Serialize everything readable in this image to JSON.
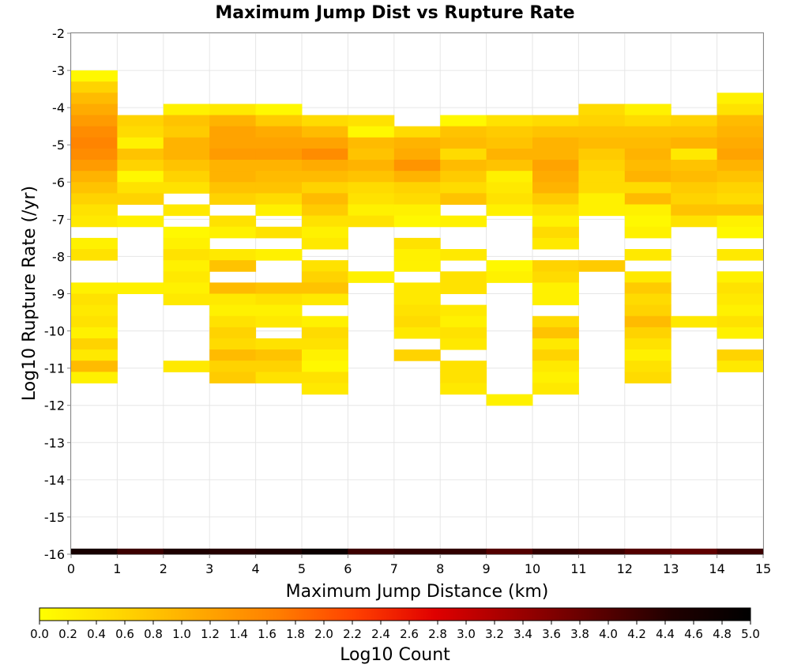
{
  "chart_data": {
    "type": "heatmap",
    "title": "Maximum Jump Dist vs Rupture Rate",
    "xlabel": "Maximum Jump Distance (km)",
    "ylabel": "Log10 Rupture Rate (/yr)",
    "xlim": [
      0,
      15
    ],
    "ylim": [
      -16,
      -2
    ],
    "x_ticks": [
      "0",
      "1",
      "2",
      "3",
      "4",
      "5",
      "6",
      "7",
      "8",
      "9",
      "10",
      "11",
      "12",
      "13",
      "14",
      "15"
    ],
    "y_ticks": [
      "-2",
      "-3",
      "-4",
      "-5",
      "-6",
      "-7",
      "-8",
      "-9",
      "-10",
      "-11",
      "-12",
      "-13",
      "-14",
      "-15",
      "-16"
    ],
    "grid": true,
    "colorscale": {
      "label": "Log10 Count",
      "min": 0.0,
      "max": 5.0,
      "ticks": [
        "0.0",
        "0.2",
        "0.4",
        "0.6",
        "0.8",
        "1.0",
        "1.2",
        "1.4",
        "1.6",
        "1.8",
        "2.0",
        "2.2",
        "2.4",
        "2.6",
        "2.8",
        "3.0",
        "3.2",
        "3.4",
        "3.6",
        "3.8",
        "4.0",
        "4.2",
        "4.4",
        "4.6",
        "4.8",
        "5.0"
      ],
      "colors": [
        "#ffff00",
        "#ffd700",
        "#ffaa00",
        "#ff7f00",
        "#ff4000",
        "#e00000",
        "#a00000",
        "#600000",
        "#200000",
        "#000000"
      ]
    },
    "bin_height": 0.3,
    "columns": [
      {
        "x0": 0,
        "bins": [
          [
            -3.0,
            0.1
          ],
          [
            -3.3,
            0.6
          ],
          [
            -3.6,
            0.9
          ],
          [
            -3.9,
            1.1
          ],
          [
            -4.2,
            1.3
          ],
          [
            -4.5,
            1.5
          ],
          [
            -4.8,
            1.6
          ],
          [
            -5.1,
            1.5
          ],
          [
            -5.4,
            1.3
          ],
          [
            -5.7,
            1.0
          ],
          [
            -6.0,
            0.8
          ],
          [
            -6.3,
            0.6
          ],
          [
            -6.6,
            0.4
          ],
          [
            -6.9,
            0.3
          ],
          [
            -7.5,
            0.2
          ],
          [
            -7.8,
            0.4
          ],
          [
            -8.7,
            0.2
          ],
          [
            -9.0,
            0.4
          ],
          [
            -9.3,
            0.3
          ],
          [
            -9.6,
            0.4
          ],
          [
            -9.9,
            0.2
          ],
          [
            -10.2,
            0.6
          ],
          [
            -10.5,
            0.3
          ],
          [
            -10.8,
            0.9
          ],
          [
            -11.1,
            0.2
          ]
        ]
      },
      {
        "x0": 1,
        "bins": [
          [
            -4.2,
            0.6
          ],
          [
            -4.5,
            0.5
          ],
          [
            -4.8,
            0.2
          ],
          [
            -5.1,
            0.8
          ],
          [
            -5.4,
            0.6
          ],
          [
            -5.7,
            0.1
          ],
          [
            -6.0,
            0.4
          ],
          [
            -6.3,
            0.6
          ],
          [
            -6.9,
            0.2
          ],
          [
            -8.7,
            0.2
          ]
        ]
      },
      {
        "x0": 2,
        "bins": [
          [
            -3.9,
            0.2
          ],
          [
            -4.2,
            0.8
          ],
          [
            -4.5,
            0.7
          ],
          [
            -4.8,
            1.0
          ],
          [
            -5.1,
            1.0
          ],
          [
            -5.4,
            0.8
          ],
          [
            -5.7,
            0.6
          ],
          [
            -6.0,
            0.4
          ],
          [
            -6.6,
            0.3
          ],
          [
            -7.2,
            0.1
          ],
          [
            -7.5,
            0.2
          ],
          [
            -7.8,
            0.4
          ],
          [
            -8.1,
            0.2
          ],
          [
            -8.4,
            0.3
          ],
          [
            -8.7,
            0.2
          ],
          [
            -9.0,
            0.3
          ],
          [
            -10.8,
            0.3
          ]
        ]
      },
      {
        "x0": 3,
        "bins": [
          [
            -3.9,
            0.3
          ],
          [
            -4.2,
            1.0
          ],
          [
            -4.5,
            1.2
          ],
          [
            -4.8,
            1.2
          ],
          [
            -5.1,
            1.3
          ],
          [
            -5.4,
            1.0
          ],
          [
            -5.7,
            1.0
          ],
          [
            -6.0,
            0.8
          ],
          [
            -6.3,
            0.6
          ],
          [
            -6.9,
            0.4
          ],
          [
            -7.2,
            0.2
          ],
          [
            -7.8,
            0.3
          ],
          [
            -8.1,
            0.8
          ],
          [
            -8.7,
            0.9
          ],
          [
            -9.0,
            0.3
          ],
          [
            -9.3,
            0.2
          ],
          [
            -9.6,
            0.4
          ],
          [
            -9.9,
            0.6
          ],
          [
            -10.2,
            0.5
          ],
          [
            -10.5,
            0.9
          ],
          [
            -10.8,
            0.6
          ],
          [
            -11.1,
            0.7
          ]
        ]
      },
      {
        "x0": 4,
        "bins": [
          [
            -3.9,
            0.1
          ],
          [
            -4.2,
            0.7
          ],
          [
            -4.5,
            1.1
          ],
          [
            -4.8,
            1.2
          ],
          [
            -5.1,
            1.3
          ],
          [
            -5.4,
            1.0
          ],
          [
            -5.7,
            0.9
          ],
          [
            -6.0,
            0.8
          ],
          [
            -6.3,
            0.5
          ],
          [
            -6.6,
            0.2
          ],
          [
            -7.2,
            0.4
          ],
          [
            -7.8,
            0.2
          ],
          [
            -8.7,
            0.8
          ],
          [
            -9.0,
            0.4
          ],
          [
            -9.3,
            0.2
          ],
          [
            -9.6,
            0.3
          ],
          [
            -10.2,
            0.4
          ],
          [
            -10.5,
            0.8
          ],
          [
            -10.8,
            0.6
          ],
          [
            -11.1,
            0.4
          ]
        ]
      },
      {
        "x0": 5,
        "bins": [
          [
            -4.2,
            0.5
          ],
          [
            -4.5,
            0.9
          ],
          [
            -4.8,
            1.2
          ],
          [
            -5.1,
            1.5
          ],
          [
            -5.4,
            1.1
          ],
          [
            -5.7,
            0.9
          ],
          [
            -6.0,
            0.6
          ],
          [
            -6.3,
            0.9
          ],
          [
            -6.6,
            0.7
          ],
          [
            -6.9,
            0.4
          ],
          [
            -7.2,
            0.2
          ],
          [
            -7.5,
            0.3
          ],
          [
            -8.1,
            0.4
          ],
          [
            -8.4,
            0.6
          ],
          [
            -8.7,
            0.8
          ],
          [
            -9.0,
            0.3
          ],
          [
            -9.6,
            0.2
          ],
          [
            -9.9,
            0.5
          ],
          [
            -10.2,
            0.4
          ],
          [
            -10.5,
            0.2
          ],
          [
            -10.8,
            0.1
          ],
          [
            -11.1,
            0.4
          ],
          [
            -11.4,
            0.3
          ]
        ]
      },
      {
        "x0": 6,
        "bins": [
          [
            -4.2,
            0.4
          ],
          [
            -4.5,
            0.1
          ],
          [
            -4.8,
            0.9
          ],
          [
            -5.1,
            0.8
          ],
          [
            -5.4,
            1.0
          ],
          [
            -5.7,
            0.8
          ],
          [
            -6.0,
            0.5
          ],
          [
            -6.3,
            0.4
          ],
          [
            -6.6,
            0.2
          ],
          [
            -6.9,
            0.4
          ],
          [
            -8.4,
            0.2
          ]
        ]
      },
      {
        "x0": 7,
        "bins": [
          [
            -4.5,
            0.5
          ],
          [
            -4.8,
            1.0
          ],
          [
            -5.1,
            1.1
          ],
          [
            -5.4,
            1.4
          ],
          [
            -5.7,
            1.0
          ],
          [
            -6.0,
            0.6
          ],
          [
            -6.3,
            0.5
          ],
          [
            -6.6,
            0.2
          ],
          [
            -6.9,
            0.1
          ],
          [
            -7.5,
            0.4
          ],
          [
            -7.8,
            0.2
          ],
          [
            -8.1,
            0.2
          ],
          [
            -8.7,
            0.3
          ],
          [
            -9.0,
            0.3
          ],
          [
            -9.3,
            0.4
          ],
          [
            -9.6,
            0.5
          ],
          [
            -9.9,
            0.3
          ],
          [
            -10.5,
            0.6
          ]
        ]
      },
      {
        "x0": 8,
        "bins": [
          [
            -4.2,
            0.1
          ],
          [
            -4.5,
            0.8
          ],
          [
            -4.8,
            0.9
          ],
          [
            -5.1,
            0.5
          ],
          [
            -5.4,
            0.9
          ],
          [
            -5.7,
            0.7
          ],
          [
            -6.0,
            0.5
          ],
          [
            -6.3,
            0.8
          ],
          [
            -6.9,
            0.2
          ],
          [
            -7.8,
            0.3
          ],
          [
            -8.4,
            0.4
          ],
          [
            -8.7,
            0.4
          ],
          [
            -9.3,
            0.3
          ],
          [
            -9.6,
            0.2
          ],
          [
            -9.9,
            0.4
          ],
          [
            -10.2,
            0.3
          ],
          [
            -10.8,
            0.4
          ],
          [
            -11.1,
            0.4
          ],
          [
            -11.4,
            0.3
          ]
        ]
      },
      {
        "x0": 9,
        "bins": [
          [
            -4.2,
            0.4
          ],
          [
            -4.5,
            0.7
          ],
          [
            -4.8,
            0.8
          ],
          [
            -5.1,
            1.0
          ],
          [
            -5.4,
            0.8
          ],
          [
            -5.7,
            0.2
          ],
          [
            -6.0,
            0.3
          ],
          [
            -6.3,
            0.4
          ],
          [
            -6.6,
            0.2
          ],
          [
            -8.1,
            0.1
          ],
          [
            -8.4,
            0.2
          ],
          [
            -11.7,
            0.2
          ]
        ]
      },
      {
        "x0": 10,
        "bins": [
          [
            -4.2,
            0.5
          ],
          [
            -4.5,
            0.8
          ],
          [
            -4.8,
            1.0
          ],
          [
            -5.1,
            1.0
          ],
          [
            -5.4,
            1.2
          ],
          [
            -5.7,
            1.1
          ],
          [
            -6.0,
            1.0
          ],
          [
            -6.3,
            0.7
          ],
          [
            -6.6,
            0.4
          ],
          [
            -6.9,
            0.2
          ],
          [
            -7.2,
            0.5
          ],
          [
            -7.5,
            0.3
          ],
          [
            -8.1,
            0.6
          ],
          [
            -8.4,
            0.5
          ],
          [
            -8.7,
            0.2
          ],
          [
            -9.0,
            0.2
          ],
          [
            -9.6,
            0.5
          ],
          [
            -9.9,
            0.8
          ],
          [
            -10.2,
            0.3
          ],
          [
            -10.5,
            0.6
          ],
          [
            -10.8,
            0.3
          ],
          [
            -11.1,
            0.2
          ],
          [
            -11.4,
            0.3
          ]
        ]
      },
      {
        "x0": 11,
        "bins": [
          [
            -3.9,
            0.5
          ],
          [
            -4.2,
            0.6
          ],
          [
            -4.5,
            0.8
          ],
          [
            -4.8,
            0.9
          ],
          [
            -5.1,
            0.7
          ],
          [
            -5.4,
            0.6
          ],
          [
            -5.7,
            0.5
          ],
          [
            -6.0,
            0.5
          ],
          [
            -6.3,
            0.2
          ],
          [
            -6.6,
            0.2
          ],
          [
            -8.1,
            0.7
          ]
        ]
      },
      {
        "x0": 12,
        "bins": [
          [
            -3.9,
            0.2
          ],
          [
            -4.2,
            0.5
          ],
          [
            -4.5,
            0.8
          ],
          [
            -4.8,
            0.9
          ],
          [
            -5.1,
            1.0
          ],
          [
            -5.4,
            0.9
          ],
          [
            -5.7,
            1.0
          ],
          [
            -6.0,
            0.5
          ],
          [
            -6.3,
            0.9
          ],
          [
            -6.6,
            0.2
          ],
          [
            -6.9,
            0.1
          ],
          [
            -7.2,
            0.2
          ],
          [
            -7.8,
            0.3
          ],
          [
            -8.4,
            0.3
          ],
          [
            -8.7,
            0.7
          ],
          [
            -9.0,
            0.5
          ],
          [
            -9.3,
            0.6
          ],
          [
            -9.6,
            0.9
          ],
          [
            -9.9,
            0.6
          ],
          [
            -10.2,
            0.4
          ],
          [
            -10.5,
            0.2
          ],
          [
            -10.8,
            0.4
          ],
          [
            -11.1,
            0.5
          ]
        ]
      },
      {
        "x0": 13,
        "bins": [
          [
            -4.2,
            0.6
          ],
          [
            -4.5,
            0.8
          ],
          [
            -4.8,
            1.0
          ],
          [
            -5.1,
            0.3
          ],
          [
            -5.4,
            0.8
          ],
          [
            -5.7,
            0.9
          ],
          [
            -6.0,
            0.7
          ],
          [
            -6.3,
            0.6
          ],
          [
            -6.6,
            0.8
          ],
          [
            -6.9,
            0.4
          ],
          [
            -9.6,
            0.3
          ]
        ]
      },
      {
        "x0": 14,
        "bins": [
          [
            -3.6,
            0.2
          ],
          [
            -3.9,
            0.4
          ],
          [
            -4.2,
            0.9
          ],
          [
            -4.5,
            1.0
          ],
          [
            -4.8,
            1.1
          ],
          [
            -5.1,
            1.2
          ],
          [
            -5.4,
            1.0
          ],
          [
            -5.7,
            0.8
          ],
          [
            -6.0,
            0.6
          ],
          [
            -6.3,
            0.5
          ],
          [
            -6.6,
            0.8
          ],
          [
            -6.9,
            0.2
          ],
          [
            -7.2,
            0.1
          ],
          [
            -7.8,
            0.3
          ],
          [
            -8.4,
            0.2
          ],
          [
            -8.7,
            0.4
          ],
          [
            -9.0,
            0.3
          ],
          [
            -9.3,
            0.2
          ],
          [
            -9.6,
            0.4
          ],
          [
            -9.9,
            0.2
          ],
          [
            -10.5,
            0.6
          ],
          [
            -10.8,
            0.3
          ]
        ]
      }
    ],
    "bottom_row": {
      "y": -16,
      "values": [
        4.6,
        4.2,
        4.5,
        4.4,
        4.5,
        4.8,
        4.2,
        4.3,
        4.3,
        4.0,
        4.3,
        4.2,
        4.0,
        3.9,
        4.2
      ]
    }
  }
}
